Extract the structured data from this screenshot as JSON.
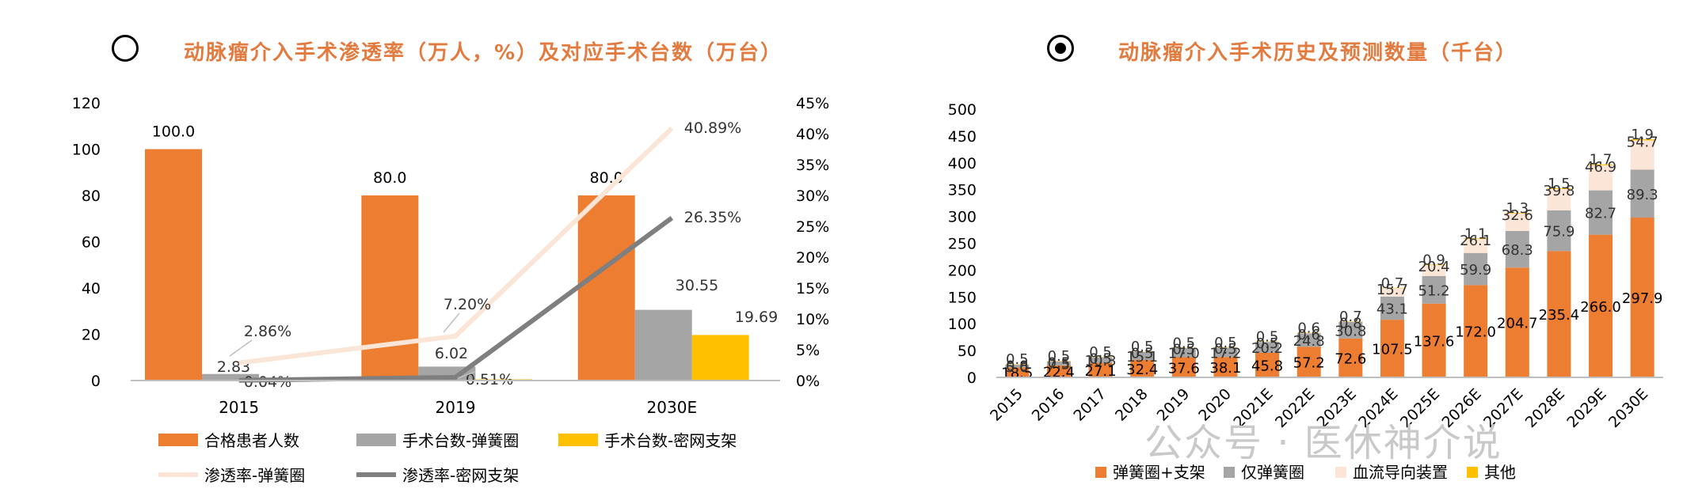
{
  "left_title": "动脉瘤介入手术渗透率（万人，%）及对应手术台数（万台）",
  "right_title": "动脉瘤介入手术历史及预测数量（千台）",
  "watermark": "公众号 · 医休神介说",
  "colors": {
    "orange": "#ed7d31",
    "gray": "#a5a5a5",
    "yellow": "#ffc000",
    "pink": "#fbe5d6",
    "darkgray": "#7f7f7f",
    "title": "#e27b3f"
  },
  "chart_data": [
    {
      "type": "bar",
      "categories": [
        "2015",
        "2019",
        "2030E"
      ],
      "series": [
        {
          "name": "合格患者人数",
          "values": [
            100.0,
            80.0,
            80.0
          ],
          "labels": [
            "100.0",
            "80.0",
            "80.0"
          ]
        },
        {
          "name": "手术台数-弹簧圈",
          "values": [
            2.83,
            6.02,
            30.55
          ],
          "labels": [
            "2.83",
            "6.02",
            "30.55"
          ]
        },
        {
          "name": "手术台数-密网支架",
          "values": [
            0.04,
            0.51,
            19.69
          ],
          "labels": [
            "0.04%",
            "0.51%",
            "19.69"
          ]
        }
      ],
      "line_series": [
        {
          "name": "渗透率-弹簧圈",
          "values": [
            2.86,
            7.2,
            40.89
          ],
          "labels": [
            "2.86%",
            "7.20%",
            "40.89%"
          ]
        },
        {
          "name": "渗透率-密网支架",
          "values": [
            0.04,
            0.51,
            26.35
          ],
          "labels": [
            "",
            "",
            "26.35%"
          ]
        }
      ],
      "ylim": [
        0,
        120
      ],
      "yticks": [
        "0",
        "20",
        "40",
        "60",
        "80",
        "100",
        "120"
      ],
      "y2lim": [
        0,
        45
      ],
      "y2ticks": [
        "0%",
        "5%",
        "10%",
        "15%",
        "20%",
        "25%",
        "30%",
        "35%",
        "40%",
        "45%"
      ],
      "legend": [
        "合格患者人数",
        "手术台数-弹簧圈",
        "手术台数-密网支架",
        "渗透率-弹簧圈",
        "渗透率-密网支架"
      ],
      "legend_position": "bottom"
    },
    {
      "type": "bar",
      "stacked": true,
      "categories": [
        "2015",
        "2016",
        "2017",
        "2018",
        "2019",
        "2020",
        "2021E",
        "2022E",
        "2023E",
        "2024E",
        "2025E",
        "2026E",
        "2027E",
        "2028E",
        "2029E",
        "2030E"
      ],
      "series": [
        {
          "name": "弹簧圈+支架",
          "values": [
            18.5,
            22.4,
            27.1,
            32.4,
            37.6,
            38.1,
            45.8,
            57.2,
            72.6,
            107.5,
            137.6,
            172.0,
            204.7,
            235.4,
            266.0,
            297.9
          ]
        },
        {
          "name": "仅弹簧圈",
          "values": [
            5.0,
            7.5,
            10.3,
            15.1,
            17.0,
            17.2,
            20.2,
            24.8,
            30.8,
            43.1,
            51.2,
            59.9,
            68.3,
            75.9,
            82.7,
            89.3
          ]
        },
        {
          "name": "血流导向装置",
          "values": [
            0.8,
            0.5,
            0.5,
            0.5,
            0.5,
            0.5,
            0.5,
            0.6,
            0.8,
            15.7,
            20.4,
            26.1,
            32.6,
            39.8,
            46.9,
            54.7
          ]
        },
        {
          "name": "其他",
          "values": [
            0.5,
            0.5,
            0.5,
            0.5,
            0.5,
            0.5,
            0.5,
            0.6,
            0.7,
            0.7,
            0.9,
            1.1,
            1.3,
            1.5,
            1.7,
            1.9
          ]
        }
      ],
      "ylim": [
        0,
        500
      ],
      "yticks": [
        "0",
        "50",
        "100",
        "150",
        "200",
        "250",
        "300",
        "350",
        "400",
        "450",
        "500"
      ],
      "legend": [
        "弹簧圈+支架",
        "仅弹簧圈",
        "血流导向装置",
        "其他"
      ],
      "legend_position": "bottom"
    }
  ]
}
